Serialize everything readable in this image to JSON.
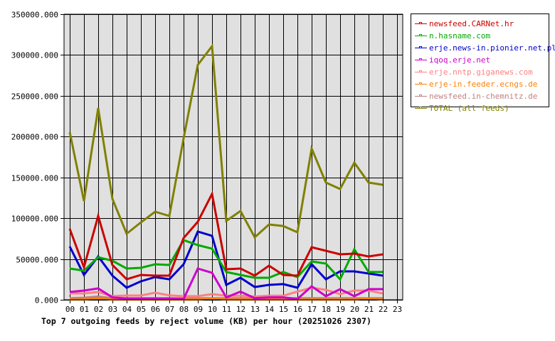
{
  "chart_data": {
    "type": "line",
    "title": "Top 7 outgoing feeds by reject volume (KB) per hour (20251026 2307)",
    "xlabel": "",
    "ylabel": "",
    "x": [
      "00",
      "01",
      "02",
      "03",
      "04",
      "05",
      "06",
      "07",
      "08",
      "09",
      "10",
      "11",
      "12",
      "13",
      "14",
      "15",
      "16",
      "17",
      "18",
      "19",
      "20",
      "21",
      "22",
      "23"
    ],
    "ylim": [
      0,
      350000
    ],
    "yticks": [
      "0.000",
      "50000.000",
      "100000.000",
      "150000.000",
      "200000.000",
      "250000.000",
      "300000.000",
      "350000.000"
    ],
    "grid": true,
    "legend_position": "right",
    "background": "#e0e0e0",
    "series": [
      {
        "name": "newsfeed.CARNet.hr",
        "color": "#cc0000",
        "values": [
          87000,
          40000,
          102700,
          42700,
          25200,
          30500,
          29600,
          29600,
          75700,
          95700,
          129700,
          37400,
          38300,
          29600,
          41800,
          30500,
          29600,
          64400,
          60100,
          55700,
          56600,
          53100,
          55700,
          null
        ]
      },
      {
        "name": "n.hasname.com",
        "color": "#00aa00",
        "values": [
          38300,
          35700,
          52200,
          47900,
          38300,
          39200,
          43500,
          42700,
          73100,
          67000,
          62700,
          34000,
          30500,
          27000,
          27000,
          34000,
          27900,
          47000,
          44400,
          25200,
          61800,
          34000,
          34000,
          null
        ]
      },
      {
        "name": "erje.news-in.pionier.net.pl",
        "color": "#0000cc",
        "values": [
          65300,
          30500,
          53100,
          29600,
          14800,
          22600,
          27900,
          25200,
          43500,
          83600,
          78400,
          18300,
          27000,
          15700,
          18300,
          19200,
          14800,
          43500,
          25200,
          34800,
          34800,
          32200,
          29600,
          null
        ]
      },
      {
        "name": "iqoq.erje.net",
        "color": "#cc00cc",
        "values": [
          9600,
          11300,
          13900,
          3000,
          1500,
          1500,
          1500,
          1500,
          1000,
          38300,
          33100,
          3000,
          10000,
          2000,
          3000,
          3000,
          1000,
          16500,
          4400,
          13100,
          4400,
          13100,
          13100,
          null
        ]
      },
      {
        "name": "erje.nntp.giganews.com",
        "color": "#ff8080",
        "values": [
          7800,
          7800,
          9600,
          4400,
          5200,
          5200,
          8700,
          5500,
          4400,
          4400,
          7000,
          5000,
          5000,
          4000,
          5000,
          5000,
          10000,
          14800,
          12200,
          7000,
          11300,
          11300,
          7800,
          null
        ]
      },
      {
        "name": "erje-in.feeder.ecngs.de",
        "color": "#ff8000",
        "values": [
          300,
          300,
          1500,
          300,
          300,
          300,
          300,
          300,
          300,
          300,
          1500,
          300,
          300,
          300,
          300,
          300,
          300,
          300,
          300,
          300,
          300,
          1500,
          300,
          null
        ]
      },
      {
        "name": "newsfeed.in-chemnitz.de",
        "color": "#c08080",
        "values": [
          2000,
          2500,
          4000,
          2000,
          2000,
          2000,
          2000,
          2000,
          2000,
          2000,
          2000,
          2000,
          2000,
          2000,
          2000,
          2000,
          2000,
          2000,
          2000,
          2000,
          2000,
          2000,
          2000,
          null
        ]
      },
      {
        "name": "TOTAL (all feeds)",
        "color": "#808000",
        "values": [
          205500,
          121000,
          235000,
          123600,
          81000,
          94900,
          108000,
          102700,
          197600,
          288000,
          310800,
          96600,
          108800,
          76600,
          92300,
          90500,
          82700,
          185400,
          143700,
          135800,
          168000,
          143700,
          141000,
          null
        ]
      }
    ]
  }
}
